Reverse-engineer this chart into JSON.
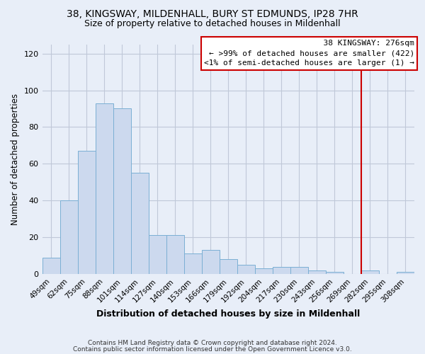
{
  "title": "38, KINGSWAY, MILDENHALL, BURY ST EDMUNDS, IP28 7HR",
  "subtitle": "Size of property relative to detached houses in Mildenhall",
  "xlabel": "Distribution of detached houses by size in Mildenhall",
  "ylabel": "Number of detached properties",
  "bar_labels": [
    "49sqm",
    "62sqm",
    "75sqm",
    "88sqm",
    "101sqm",
    "114sqm",
    "127sqm",
    "140sqm",
    "153sqm",
    "166sqm",
    "179sqm",
    "192sqm",
    "204sqm",
    "217sqm",
    "230sqm",
    "243sqm",
    "256sqm",
    "269sqm",
    "282sqm",
    "295sqm",
    "308sqm"
  ],
  "bar_heights": [
    9,
    40,
    67,
    93,
    90,
    55,
    21,
    21,
    11,
    13,
    8,
    5,
    3,
    4,
    4,
    2,
    1,
    0,
    2,
    0,
    1
  ],
  "bar_color": "#ccd9ee",
  "bar_edge_color": "#7bafd4",
  "highlight_line_color": "#cc0000",
  "highlight_bar_index": 18,
  "ylim": [
    0,
    125
  ],
  "yticks": [
    0,
    20,
    40,
    60,
    80,
    100,
    120
  ],
  "legend_title": "38 KINGSWAY: 276sqm",
  "legend_line1": "← >99% of detached houses are smaller (422)",
  "legend_line2": "<1% of semi-detached houses are larger (1) →",
  "footer_line1": "Contains HM Land Registry data © Crown copyright and database right 2024.",
  "footer_line2": "Contains public sector information licensed under the Open Government Licence v3.0.",
  "background_color": "#e8eef8",
  "plot_bg_color": "#e8eef8",
  "grid_color": "#c0c8d8"
}
